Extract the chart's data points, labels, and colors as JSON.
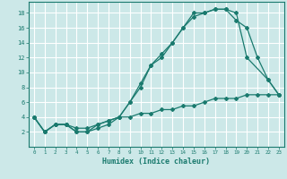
{
  "xlabel": "Humidex (Indice chaleur)",
  "ylabel": "",
  "bg_color": "#cce8e8",
  "grid_color": "#ffffff",
  "line_color": "#1a7a6e",
  "xlim": [
    -0.5,
    23.5
  ],
  "ylim": [
    0,
    19.5
  ],
  "xticks": [
    0,
    1,
    2,
    3,
    4,
    5,
    6,
    7,
    8,
    9,
    10,
    11,
    12,
    13,
    14,
    15,
    16,
    17,
    18,
    19,
    20,
    21,
    22,
    23
  ],
  "yticks": [
    2,
    4,
    6,
    8,
    10,
    12,
    14,
    16,
    18
  ],
  "series1_x": [
    0,
    1,
    2,
    3,
    4,
    5,
    6,
    7,
    8,
    9,
    10,
    11,
    12,
    13,
    14,
    15,
    16,
    17,
    18,
    19,
    20,
    22,
    23
  ],
  "series1_y": [
    4,
    2,
    3,
    3,
    2,
    2,
    3,
    3.5,
    4,
    6,
    8.5,
    11,
    12,
    14,
    16,
    17.5,
    18,
    18.5,
    18.5,
    18,
    12,
    9,
    7
  ],
  "series2_x": [
    0,
    1,
    2,
    3,
    4,
    5,
    6,
    7,
    8,
    9,
    10,
    11,
    12,
    13,
    14,
    15,
    16,
    17,
    18,
    19,
    20,
    21,
    22,
    23
  ],
  "series2_y": [
    4,
    2,
    3,
    3,
    2,
    2,
    2.5,
    3,
    4,
    6,
    8,
    11,
    12.5,
    14,
    16,
    18,
    18,
    18.5,
    18.5,
    17,
    16,
    12,
    9,
    7
  ],
  "series3_x": [
    0,
    1,
    2,
    3,
    4,
    5,
    6,
    7,
    8,
    9,
    10,
    11,
    12,
    13,
    14,
    15,
    16,
    17,
    18,
    19,
    20,
    21,
    22,
    23
  ],
  "series3_y": [
    4,
    2,
    3,
    3,
    2.5,
    2.5,
    3,
    3.5,
    4,
    4,
    4.5,
    4.5,
    5,
    5,
    5.5,
    5.5,
    6,
    6.5,
    6.5,
    6.5,
    7,
    7,
    7,
    7
  ]
}
